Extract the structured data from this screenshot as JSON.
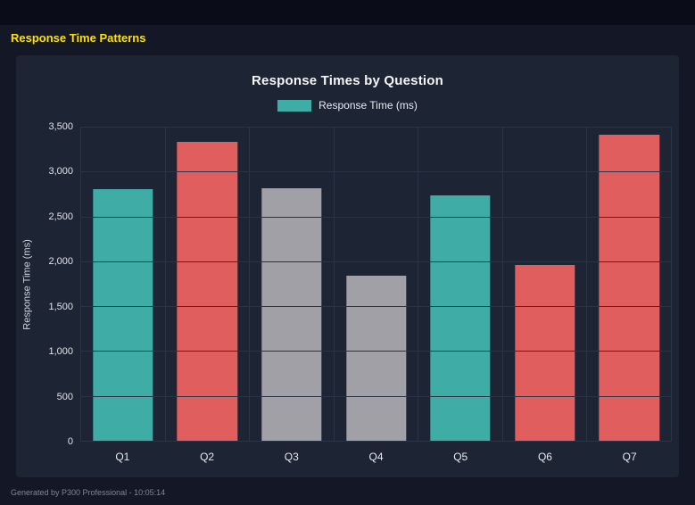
{
  "page": {
    "title": "Response Time Patterns",
    "footer": "Generated by P300 Professional - 10:05:14"
  },
  "chart": {
    "title": "Response Times by Question",
    "legend_label": "Response Time (ms)",
    "ylabel": "Response Time (ms)"
  },
  "colors": {
    "teal": "#40aca6",
    "red": "#e05e5e",
    "gray": "#a0a0a6",
    "accent_yellow": "#ffe100",
    "panel_bg": "#1d2433",
    "page_bg": "#141826",
    "gridline": "#2c3347"
  },
  "chart_data": {
    "type": "bar",
    "title": "Response Times by Question",
    "categories": [
      "Q1",
      "Q2",
      "Q3",
      "Q4",
      "Q5",
      "Q6",
      "Q7"
    ],
    "values": [
      2800,
      3330,
      2810,
      1840,
      2730,
      1960,
      3410
    ],
    "bar_colors": [
      "#40aca6",
      "#e05e5e",
      "#a0a0a6",
      "#a0a0a6",
      "#40aca6",
      "#e05e5e",
      "#e05e5e"
    ],
    "xlabel": "",
    "ylabel": "Response Time (ms)",
    "ylim": [
      0,
      3500
    ],
    "ytick_step": 500,
    "legend": [
      "Response Time (ms)"
    ],
    "legend_position": "top",
    "legend_color": "#40aca6",
    "grid": true
  }
}
